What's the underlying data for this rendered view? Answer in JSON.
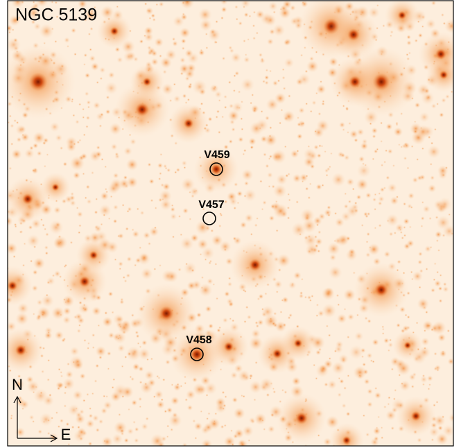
{
  "title": "NGC 5139",
  "markers": [
    {
      "label": "V459"
    },
    {
      "label": "V457"
    },
    {
      "label": "V458"
    }
  ],
  "compass": {
    "north": "N",
    "east": "E"
  }
}
